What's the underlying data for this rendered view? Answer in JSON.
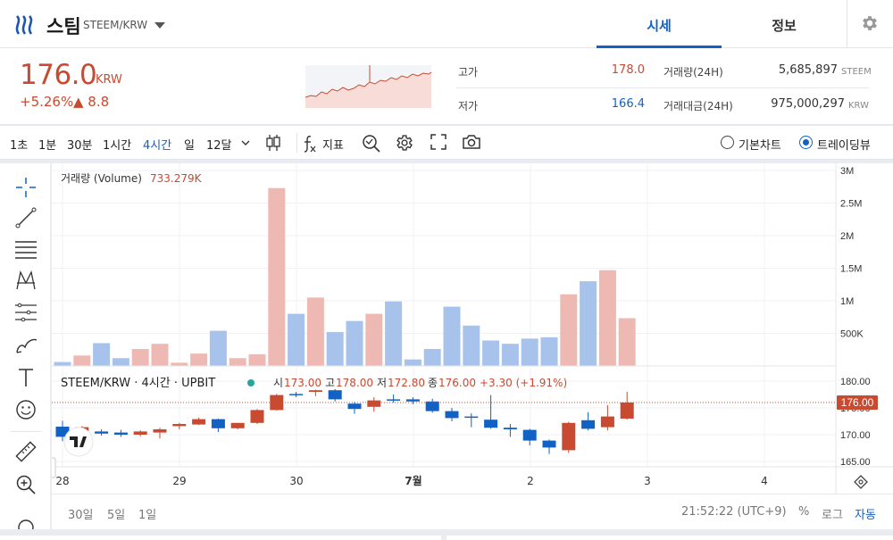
{
  "header": {
    "coin_name": "스팀",
    "pair": "STEEM/KRW",
    "tabs": [
      "시세",
      "정보"
    ]
  },
  "price": {
    "current": "176.0",
    "unit": "KRW",
    "change_rate": "+5.26%",
    "change_amount": "▲ 8.8"
  },
  "stats": {
    "high_label": "고가",
    "high": "178.0",
    "low_label": "저가",
    "low": "166.4",
    "volume_label": "거래량(24H)",
    "volume": "5,685,897",
    "volume_unit": "STEEM",
    "value_label": "거래대금(24H)",
    "value": "975,000,297",
    "value_unit": "KRW"
  },
  "toolbar": {
    "intervals": [
      "1초",
      "1분",
      "30분",
      "1시간",
      "4시간",
      "일",
      "12달"
    ],
    "active_interval": "4시간",
    "indicator_label": "지표",
    "basic_chart": "기본차트",
    "trading_view": "트레이딩뷰"
  },
  "colors": {
    "up": "#c84a31",
    "down": "#1261c4",
    "up_volume": "#efb9b3",
    "down_volume": "#a7c3eb"
  },
  "chart_data": {
    "type": "candlestick",
    "title": "STEEM/KRW · 4시간 · UPBIT",
    "ohlc_labels": {
      "o_label": "시",
      "o": "173.00",
      "h_label": "고",
      "h": "178.00",
      "l_label": "저",
      "l": "172.80",
      "c_label": "종",
      "c": "176.00",
      "change": "+3.30 (+1.91%)"
    },
    "volume_label": "거래량 (Volume)",
    "volume_value": "733.279K",
    "last_price_label": "176.00",
    "price_ticks": [
      "180.00",
      "175.00",
      "170.00",
      "165.00"
    ],
    "price_range": [
      164,
      182
    ],
    "volume_ticks": [
      "3M",
      "2.5M",
      "2M",
      "1.5M",
      "1M",
      "500K"
    ],
    "volume_range": [
      0,
      3000000
    ],
    "x_ticks": [
      "28",
      "29",
      "30",
      "7월",
      "2",
      "3",
      "4"
    ],
    "candles": [
      {
        "o": 171.5,
        "h": 172.6,
        "l": 168.8,
        "c": 169.6,
        "v": 60000
      },
      {
        "o": 169.9,
        "h": 171.6,
        "l": 169.6,
        "c": 171.4,
        "v": 160000
      },
      {
        "o": 170.6,
        "h": 171.0,
        "l": 169.8,
        "c": 170.2,
        "v": 350000
      },
      {
        "o": 170.4,
        "h": 170.9,
        "l": 169.6,
        "c": 170.0,
        "v": 120000
      },
      {
        "o": 170.0,
        "h": 170.8,
        "l": 169.7,
        "c": 170.6,
        "v": 260000
      },
      {
        "o": 170.4,
        "h": 171.3,
        "l": 169.3,
        "c": 171.0,
        "v": 340000
      },
      {
        "o": 171.6,
        "h": 172.2,
        "l": 171.0,
        "c": 172.0,
        "v": 50000
      },
      {
        "o": 171.9,
        "h": 173.2,
        "l": 171.8,
        "c": 172.9,
        "v": 190000
      },
      {
        "o": 172.9,
        "h": 173.0,
        "l": 170.5,
        "c": 171.2,
        "v": 540000
      },
      {
        "o": 171.2,
        "h": 172.2,
        "l": 171.0,
        "c": 172.2,
        "v": 120000
      },
      {
        "o": 172.2,
        "h": 174.8,
        "l": 172.0,
        "c": 174.6,
        "v": 180000
      },
      {
        "o": 174.6,
        "h": 177.6,
        "l": 174.5,
        "c": 177.4,
        "v": 2730000
      },
      {
        "o": 177.6,
        "h": 178.0,
        "l": 177.0,
        "c": 177.5,
        "v": 800000
      },
      {
        "o": 178.0,
        "h": 178.4,
        "l": 177.2,
        "c": 178.3,
        "v": 1050000
      },
      {
        "o": 178.3,
        "h": 178.5,
        "l": 176.2,
        "c": 176.6,
        "v": 520000
      },
      {
        "o": 175.8,
        "h": 176.1,
        "l": 173.9,
        "c": 174.8,
        "v": 690000
      },
      {
        "o": 175.2,
        "h": 177.0,
        "l": 174.3,
        "c": 176.4,
        "v": 800000
      },
      {
        "o": 176.6,
        "h": 177.5,
        "l": 176.0,
        "c": 176.4,
        "v": 990000
      },
      {
        "o": 176.6,
        "h": 177.0,
        "l": 175.7,
        "c": 176.2,
        "v": 100000
      },
      {
        "o": 176.2,
        "h": 176.7,
        "l": 174.1,
        "c": 174.4,
        "v": 260000
      },
      {
        "o": 174.4,
        "h": 175.0,
        "l": 172.5,
        "c": 173.1,
        "v": 910000
      },
      {
        "o": 173.4,
        "h": 174.0,
        "l": 171.4,
        "c": 173.2,
        "v": 620000
      },
      {
        "o": 172.8,
        "h": 177.4,
        "l": 171.1,
        "c": 171.3,
        "v": 390000
      },
      {
        "o": 171.3,
        "h": 172.0,
        "l": 169.6,
        "c": 171.0,
        "v": 340000
      },
      {
        "o": 170.9,
        "h": 171.1,
        "l": 168.0,
        "c": 168.9,
        "v": 420000
      },
      {
        "o": 168.9,
        "h": 169.1,
        "l": 166.4,
        "c": 167.6,
        "v": 440000
      },
      {
        "o": 167.1,
        "h": 172.4,
        "l": 166.6,
        "c": 172.2,
        "v": 1100000
      },
      {
        "o": 172.7,
        "h": 174.2,
        "l": 170.8,
        "c": 171.1,
        "v": 1300000
      },
      {
        "o": 171.4,
        "h": 175.5,
        "l": 170.8,
        "c": 173.4,
        "v": 1470000
      },
      {
        "o": 173.0,
        "h": 178.0,
        "l": 172.8,
        "c": 176.0,
        "v": 733279
      }
    ]
  },
  "bottom": {
    "ranges": [
      "30일",
      "5일",
      "1일"
    ],
    "time": "21:52:22 (UTC+9)",
    "opts": [
      "%",
      "로그",
      "자동"
    ]
  }
}
